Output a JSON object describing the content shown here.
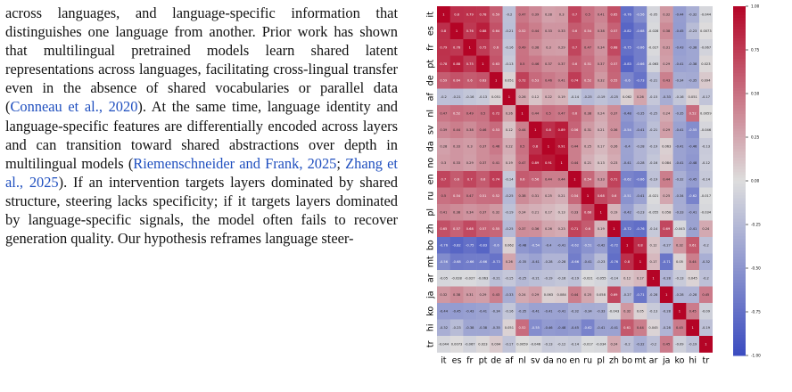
{
  "paragraph": [
    {
      "t": "across languages, and language-specific information that distinguishes one language from another. Prior work has shown that multilingual pretrained models learn shared latent representations across languages, facilitating cross-lingual transfer even in the absence of shared vocabularies or parallel data ("
    },
    {
      "t": "Conneau et al., 2020",
      "cite": true
    },
    {
      "t": "). At the same time, language identity and language-specific features are differentially encoded across layers and can transition toward shared abstractions over depth in multilingual models ("
    },
    {
      "t": "Riemenschneider and Frank, 2025",
      "cite": true
    },
    {
      "t": "; "
    },
    {
      "t": "Zhang et al., 2025",
      "cite": true
    },
    {
      "t": "). If an intervention targets layers dominated by shared structure, steering lacks specificity; if it targets layers dominated by language-specific signals, the model often fails to recover generation quality. Our hypothesis reframes language steer-"
    }
  ],
  "colors": {
    "low": "#3b4cc0",
    "mid": "#dddddd",
    "high": "#b40426",
    "citation": "#1f4fbf"
  },
  "chart_data": {
    "type": "heatmap",
    "labels": [
      "it",
      "es",
      "fr",
      "pt",
      "de",
      "af",
      "nl",
      "sv",
      "da",
      "no",
      "en",
      "ru",
      "pl",
      "zh",
      "bo",
      "mt",
      "ar",
      "ja",
      "ko",
      "hi",
      "tr"
    ],
    "values": [
      [
        1,
        0.8,
        0.79,
        0.78,
        0.59,
        -0.2,
        0.47,
        0.39,
        0.28,
        0.3,
        0.7,
        0.5,
        0.41,
        0.65,
        -0.76,
        -0.56,
        -0.05,
        0.32,
        -0.44,
        -0.32,
        -0.044
      ],
      [
        0.8,
        1,
        0.76,
        0.88,
        0.64,
        -0.21,
        0.52,
        0.44,
        0.33,
        0.33,
        0.6,
        0.54,
        0.38,
        0.57,
        -0.82,
        -0.68,
        -0.028,
        0.38,
        -0.45,
        -0.23,
        0.0073
      ],
      [
        0.79,
        0.76,
        1,
        0.75,
        0.6,
        -0.16,
        0.49,
        0.38,
        0.3,
        0.29,
        0.7,
        0.47,
        0.34,
        0.68,
        -0.75,
        -0.66,
        -0.027,
        0.31,
        -0.43,
        -0.38,
        -0.067
      ],
      [
        0.78,
        0.88,
        0.75,
        1,
        0.63,
        -0.13,
        0.5,
        0.46,
        0.37,
        0.37,
        0.6,
        0.51,
        0.37,
        0.57,
        -0.83,
        -0.66,
        -0.063,
        0.29,
        -0.41,
        -0.38,
        0.023
      ],
      [
        0.59,
        0.64,
        0.6,
        0.63,
        1,
        0.051,
        0.72,
        0.53,
        0.46,
        0.41,
        0.74,
        0.52,
        0.32,
        0.55,
        -0.6,
        -0.73,
        -0.21,
        0.43,
        -0.34,
        -0.35,
        0.094
      ],
      [
        -0.2,
        -0.21,
        -0.16,
        -0.13,
        0.051,
        1,
        0.26,
        0.12,
        0.22,
        0.19,
        -0.14,
        -0.25,
        -0.19,
        -0.25,
        0.062,
        0.26,
        -0.15,
        -0.33,
        -0.16,
        0.051,
        -0.17
      ],
      [
        0.47,
        0.52,
        0.49,
        0.5,
        0.72,
        0.26,
        1,
        0.44,
        0.5,
        0.47,
        0.6,
        0.38,
        0.24,
        0.37,
        -0.48,
        -0.35,
        -0.25,
        0.24,
        -0.35,
        0.52,
        0.0059
      ],
      [
        0.39,
        0.44,
        0.38,
        0.46,
        0.53,
        0.12,
        0.44,
        1,
        0.8,
        0.89,
        0.56,
        0.31,
        0.21,
        0.36,
        -0.54,
        -0.41,
        -0.21,
        0.29,
        -0.41,
        -0.55,
        -0.046
      ],
      [
        0.28,
        0.33,
        0.3,
        0.37,
        0.46,
        0.22,
        0.5,
        0.8,
        1,
        0.91,
        0.44,
        0.25,
        0.17,
        0.26,
        -0.4,
        -0.28,
        -0.19,
        0.063,
        -0.41,
        -0.46,
        -0.13
      ],
      [
        0.3,
        0.33,
        0.29,
        0.37,
        0.41,
        0.19,
        0.47,
        0.89,
        0.91,
        1,
        0.44,
        0.21,
        0.13,
        0.23,
        -0.41,
        -0.28,
        -0.16,
        0.084,
        -0.41,
        -0.48,
        -0.12
      ],
      [
        0.7,
        0.6,
        0.7,
        0.6,
        0.74,
        -0.14,
        0.6,
        0.56,
        0.44,
        0.44,
        1,
        0.54,
        0.33,
        0.71,
        -0.62,
        -0.66,
        -0.19,
        0.44,
        -0.32,
        -0.45,
        -0.14
      ],
      [
        0.5,
        0.54,
        0.47,
        0.51,
        0.52,
        -0.25,
        0.38,
        0.31,
        0.25,
        0.21,
        0.54,
        1,
        0.68,
        0.6,
        -0.51,
        -0.41,
        -0.021,
        0.25,
        -0.34,
        -0.62,
        -0.017
      ],
      [
        0.41,
        0.38,
        0.34,
        0.37,
        0.32,
        -0.19,
        0.24,
        0.21,
        0.17,
        0.13,
        0.33,
        0.68,
        1,
        0.19,
        -0.42,
        -0.23,
        -0.055,
        0.058,
        -0.33,
        -0.41,
        -0.034
      ],
      [
        0.65,
        0.57,
        0.68,
        0.57,
        0.55,
        -0.25,
        0.37,
        0.36,
        0.26,
        0.23,
        0.71,
        0.6,
        0.19,
        1,
        -0.72,
        -0.76,
        -0.14,
        0.69,
        -0.043,
        -0.41,
        0.24
      ],
      [
        -0.76,
        -0.82,
        -0.75,
        -0.83,
        -0.6,
        0.062,
        -0.48,
        -0.54,
        -0.4,
        -0.41,
        -0.62,
        -0.51,
        -0.42,
        -0.72,
        1,
        0.8,
        0.12,
        -0.27,
        0.32,
        0.61,
        -0.2
      ],
      [
        -0.56,
        -0.68,
        -0.66,
        -0.66,
        -0.73,
        0.26,
        -0.35,
        -0.41,
        -0.28,
        -0.28,
        -0.66,
        -0.41,
        -0.23,
        -0.76,
        0.8,
        1,
        0.17,
        -0.71,
        0.05,
        0.44,
        -0.32
      ],
      [
        -0.05,
        -0.028,
        -0.027,
        -0.063,
        -0.21,
        -0.15,
        -0.25,
        -0.21,
        -0.19,
        -0.16,
        -0.19,
        -0.021,
        -0.055,
        -0.14,
        0.12,
        0.17,
        1,
        -0.28,
        -0.13,
        0.045,
        -0.2
      ],
      [
        0.32,
        0.38,
        0.31,
        0.29,
        0.43,
        -0.33,
        0.24,
        0.29,
        0.063,
        0.084,
        0.44,
        0.25,
        0.058,
        0.69,
        -0.27,
        -0.71,
        -0.28,
        1,
        -0.28,
        -0.28,
        0.45
      ],
      [
        -0.44,
        -0.45,
        -0.43,
        -0.41,
        -0.34,
        -0.16,
        -0.35,
        -0.41,
        -0.41,
        -0.41,
        -0.32,
        -0.34,
        -0.33,
        -0.043,
        0.32,
        0.05,
        -0.13,
        -0.28,
        1,
        0.45,
        -0.09
      ],
      [
        -0.32,
        -0.23,
        -0.38,
        -0.38,
        -0.35,
        0.051,
        0.52,
        -0.55,
        -0.46,
        -0.48,
        -0.45,
        -0.62,
        -0.41,
        -0.41,
        0.61,
        0.44,
        0.045,
        -0.28,
        0.45,
        1,
        -0.19
      ],
      [
        -0.044,
        0.0073,
        -0.067,
        0.023,
        0.094,
        -0.17,
        0.0059,
        -0.046,
        -0.13,
        -0.12,
        -0.14,
        -0.017,
        -0.034,
        0.24,
        -0.2,
        -0.32,
        -0.2,
        0.45,
        -0.09,
        -0.19,
        1
      ]
    ],
    "colorbar_ticks": [
      "1.00",
      "0.75",
      "0.50",
      "0.25",
      "0.00",
      "-0.25",
      "-0.50",
      "-0.75",
      "-1.00"
    ],
    "colorbar_values": [
      1,
      0.75,
      0.5,
      0.25,
      0,
      -0.25,
      -0.5,
      -0.75,
      -1
    ],
    "vmin": -1,
    "vmax": 1,
    "colormap": "coolwarm"
  }
}
